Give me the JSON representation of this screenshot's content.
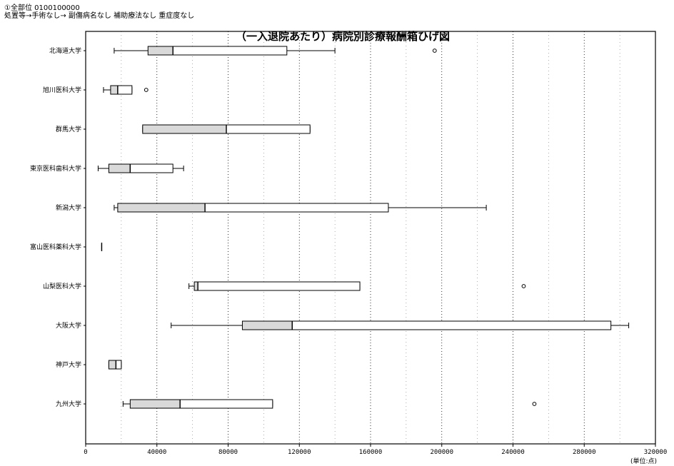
{
  "header": {
    "line1": "①全部位 0100100000",
    "line2": "処置等→手術なし→ 副傷病名なし 補助療法なし 重症度なし"
  },
  "chart_data": {
    "type": "boxplot",
    "title": "（一入退院あたり）病院別診療報酬箱ひげ図",
    "xlabel": "",
    "ylabel": "",
    "unit_label": "(単位:点)",
    "xlim": [
      0,
      320000
    ],
    "xticks": [
      0,
      40000,
      80000,
      120000,
      160000,
      200000,
      240000,
      280000,
      320000
    ],
    "orientation": "horizontal",
    "grid": true,
    "series": [
      {
        "name": "北海道大学",
        "whisker_low": 16000,
        "q1": 35000,
        "median": 49000,
        "q3": 113000,
        "whisker_high": 140000,
        "outliers": [
          196000
        ]
      },
      {
        "name": "旭川医科大学",
        "whisker_low": 10000,
        "q1": 14000,
        "median": 18000,
        "q3": 26000,
        "whisker_high": 26000,
        "outliers": [
          34000
        ]
      },
      {
        "name": "群馬大学",
        "whisker_low": 32000,
        "q1": 32000,
        "median": 79000,
        "q3": 126000,
        "whisker_high": 126000,
        "outliers": []
      },
      {
        "name": "東京医科歯科大学",
        "whisker_low": 7000,
        "q1": 13000,
        "median": 25000,
        "q3": 49000,
        "whisker_high": 55000,
        "outliers": []
      },
      {
        "name": "新潟大学",
        "whisker_low": 16000,
        "q1": 18000,
        "median": 67000,
        "q3": 170000,
        "whisker_high": 225000,
        "outliers": []
      },
      {
        "name": "富山医科薬科大学",
        "whisker_low": 9000,
        "q1": 9000,
        "median": 9000,
        "q3": 9000,
        "whisker_high": 9000,
        "outliers": []
      },
      {
        "name": "山梨医科大学",
        "whisker_low": 58000,
        "q1": 61000,
        "median": 63000,
        "q3": 154000,
        "whisker_high": 154000,
        "outliers": [
          246000
        ]
      },
      {
        "name": "大阪大学",
        "whisker_low": 48000,
        "q1": 88000,
        "median": 116000,
        "q3": 295000,
        "whisker_high": 305000,
        "outliers": []
      },
      {
        "name": "神戸大学",
        "whisker_low": 13000,
        "q1": 13000,
        "median": 17000,
        "q3": 20000,
        "whisker_high": 20000,
        "outliers": []
      },
      {
        "name": "九州大学",
        "whisker_low": 21000,
        "q1": 25000,
        "median": 53000,
        "q3": 105000,
        "whisker_high": 105000,
        "outliers": [
          252000
        ]
      }
    ]
  }
}
